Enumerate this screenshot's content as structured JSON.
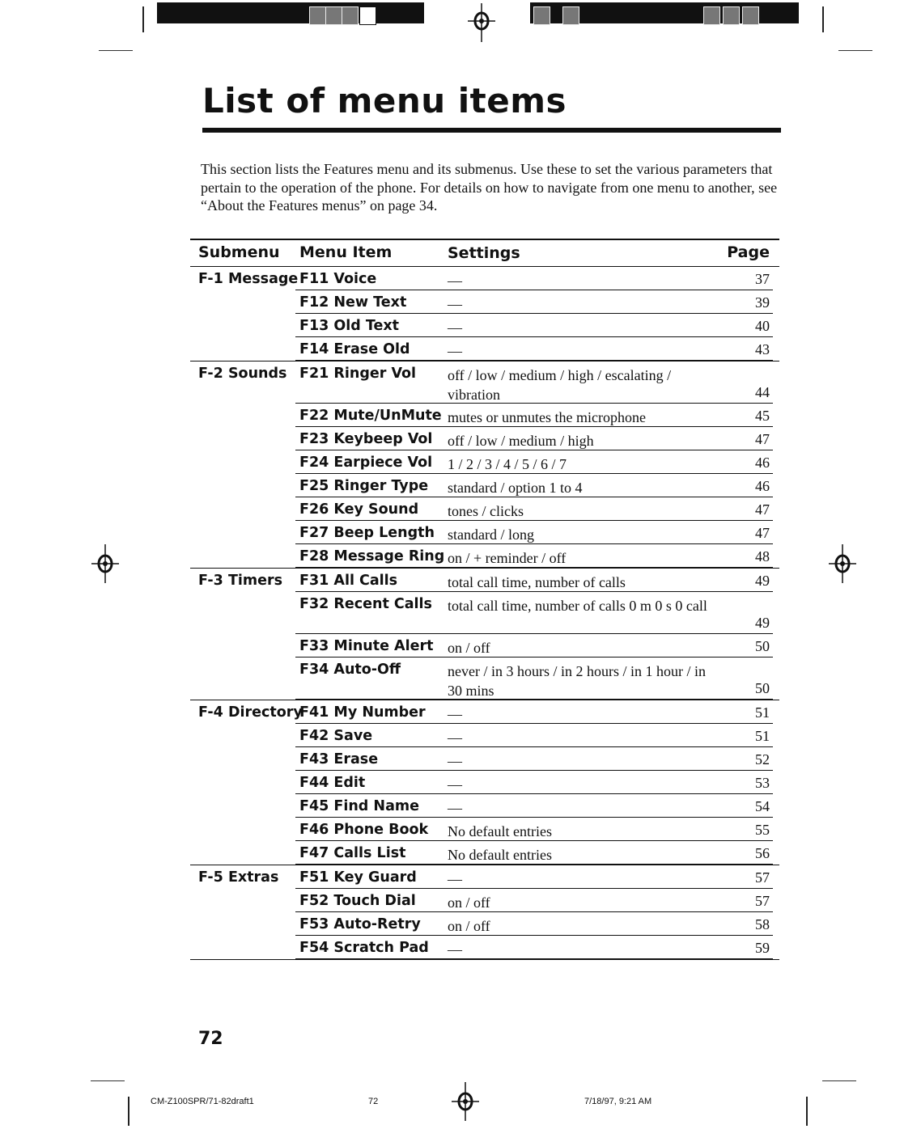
{
  "title": "List of menu items",
  "intro": "This section lists the Features menu and its submenus. Use these to set the various parameters that pertain to the operation of the phone. For details on how to navigate from one menu to another, see “About the Features menus” on page 34.",
  "table": {
    "headers": {
      "submenu": "Submenu",
      "item": "Menu Item",
      "settings": "Settings",
      "page": "Page"
    },
    "rows": [
      {
        "submenu": "F-1 Message",
        "item": "F11 Voice",
        "settings": "—",
        "page": "37"
      },
      {
        "submenu": "",
        "item": "F12 New Text",
        "settings": "—",
        "page": "39"
      },
      {
        "submenu": "",
        "item": "F13 Old Text",
        "settings": "—",
        "page": "40"
      },
      {
        "submenu": "",
        "item": "F14 Erase Old",
        "settings": "—",
        "page": "43"
      },
      {
        "submenu": "F-2 Sounds",
        "item": "F21 Ringer Vol",
        "settings": "off / low / medium / high / escalating / vibration",
        "page": "44"
      },
      {
        "submenu": "",
        "item": "F22 Mute/UnMute",
        "settings": "mutes or unmutes the microphone",
        "page": "45"
      },
      {
        "submenu": "",
        "item": "F23 Keybeep Vol",
        "settings": "off / low / medium / high",
        "page": "47"
      },
      {
        "submenu": "",
        "item": "F24 Earpiece Vol",
        "settings": "1 / 2 / 3 / 4 / 5 / 6 / 7",
        "page": "46"
      },
      {
        "submenu": "",
        "item": "F25 Ringer Type",
        "settings": "standard / option 1 to 4",
        "page": "46"
      },
      {
        "submenu": "",
        "item": "F26 Key Sound",
        "settings": "tones / clicks",
        "page": "47"
      },
      {
        "submenu": "",
        "item": "F27 Beep Length",
        "settings": "standard / long",
        "page": "47"
      },
      {
        "submenu": "",
        "item": "F28 Message Ring",
        "settings": "on / + reminder / off",
        "page": "48"
      },
      {
        "submenu": "F-3 Timers",
        "item": "F31 All Calls",
        "settings": "total call time, number of calls",
        "page": "49"
      },
      {
        "submenu": "",
        "item": "F32 Recent Calls",
        "settings": "total call time, number of calls 0 m 0 s 0 call",
        "page": "49"
      },
      {
        "submenu": "",
        "item": "F33 Minute Alert",
        "settings": "on / off",
        "page": "50"
      },
      {
        "submenu": "",
        "item": "F34 Auto-Off",
        "settings": "never / in 3 hours / in 2 hours / in 1 hour / in 30 mins",
        "page": "50"
      },
      {
        "submenu": "F-4 Directory",
        "item": "F41 My Number",
        "settings": "—",
        "page": "51"
      },
      {
        "submenu": "",
        "item": "F42 Save",
        "settings": "—",
        "page": "51"
      },
      {
        "submenu": "",
        "item": "F43 Erase",
        "settings": "—",
        "page": "52"
      },
      {
        "submenu": "",
        "item": "F44 Edit",
        "settings": "—",
        "page": "53"
      },
      {
        "submenu": "",
        "item": "F45 Find Name",
        "settings": "—",
        "page": "54"
      },
      {
        "submenu": "",
        "item": "F46 Phone Book",
        "settings": "No default entries",
        "page": "55"
      },
      {
        "submenu": "",
        "item": "F47 Calls List",
        "settings": "No default entries",
        "page": "56"
      },
      {
        "submenu": "F-5 Extras",
        "item": "F51 Key Guard",
        "settings": "—",
        "page": "57"
      },
      {
        "submenu": "",
        "item": "F52 Touch Dial",
        "settings": "on / off",
        "page": "57"
      },
      {
        "submenu": "",
        "item": "F53 Auto-Retry",
        "settings": "on / off",
        "page": "58"
      },
      {
        "submenu": "",
        "item": "F54 Scratch Pad",
        "settings": "—",
        "page": "59"
      }
    ]
  },
  "page_number": "72",
  "footer": {
    "file": "CM-Z100SPR/71-82draft1",
    "page": "72",
    "timestamp": "7/18/97, 9:21 AM"
  }
}
